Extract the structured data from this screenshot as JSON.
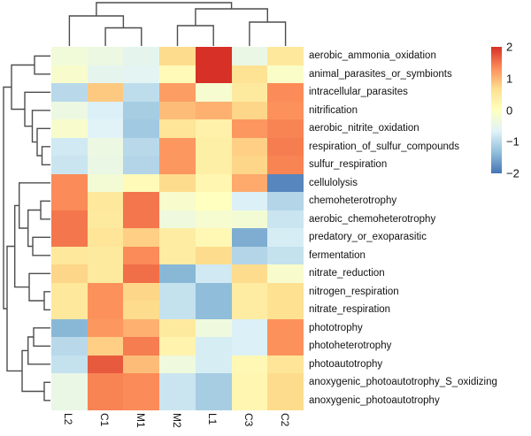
{
  "chart_data": {
    "type": "heatmap",
    "title": "",
    "columns": [
      "L2",
      "C1",
      "M1",
      "M2",
      "L1",
      "C3",
      "C2"
    ],
    "rows": [
      "aerobic_ammonia_oxidation",
      "animal_parasites_or_symbionts",
      "intracellular_parasites",
      "nitrification",
      "aerobic_nitrite_oxidation",
      "respiration_of_sulfur_compounds",
      "sulfur_respiration",
      "cellulolysis",
      "chemoheterotrophy",
      "aerobic_chemoheterotrophy",
      "predatory_or_exoparasitic",
      "fermentation",
      "nitrate_reduction",
      "nitrogen_respiration",
      "nitrate_respiration",
      "phototrophy",
      "photoheterotrophy",
      "photoautotrophy",
      "anoxygenic_photoautotrophy_S_oxidizing",
      "anoxygenic_photoautotrophy"
    ],
    "values": [
      [
        -0.3,
        -0.4,
        -0.55,
        0.7,
        2.0,
        -0.45,
        0.5
      ],
      [
        -0.15,
        -0.55,
        -0.6,
        0.1,
        2.0,
        0.6,
        -0.1
      ],
      [
        -1.0,
        0.85,
        -0.95,
        1.2,
        -0.2,
        0.45,
        1.35
      ],
      [
        -0.4,
        -0.7,
        -1.15,
        0.95,
        1.05,
        0.75,
        1.3
      ],
      [
        -0.15,
        -0.65,
        -1.2,
        0.55,
        0.3,
        1.25,
        1.4
      ],
      [
        -0.8,
        -0.4,
        -1.0,
        1.25,
        0.35,
        0.8,
        1.45
      ],
      [
        -0.85,
        -0.45,
        -1.05,
        1.25,
        0.35,
        0.75,
        1.4
      ],
      [
        1.35,
        -0.25,
        0.1,
        0.7,
        0.2,
        1.1,
        -1.85
      ],
      [
        1.35,
        0.5,
        1.5,
        -0.15,
        0.0,
        -0.7,
        -1.05
      ],
      [
        1.5,
        0.45,
        1.5,
        -0.35,
        -0.2,
        -0.25,
        -0.85
      ],
      [
        1.5,
        0.55,
        0.8,
        0.4,
        0.15,
        -1.5,
        -0.75
      ],
      [
        0.5,
        0.45,
        1.35,
        0.4,
        0.7,
        -1.05,
        -0.9
      ],
      [
        0.75,
        0.45,
        1.55,
        -1.4,
        -0.8,
        0.7,
        -0.15
      ],
      [
        0.5,
        1.3,
        0.75,
        -0.9,
        -1.35,
        0.4,
        0.65
      ],
      [
        0.5,
        1.3,
        0.7,
        -0.9,
        -1.35,
        0.4,
        0.65
      ],
      [
        -1.4,
        1.25,
        1.05,
        0.45,
        -0.35,
        -0.7,
        1.3
      ],
      [
        -1.0,
        0.8,
        1.45,
        0.25,
        -0.75,
        -0.7,
        1.3
      ],
      [
        -0.9,
        1.7,
        0.95,
        -0.35,
        -0.75,
        0.15,
        0.55
      ],
      [
        -0.45,
        1.4,
        1.35,
        -0.85,
        -1.15,
        0.2,
        0.7
      ],
      [
        -0.45,
        1.4,
        1.35,
        -0.85,
        -1.15,
        0.2,
        0.7
      ]
    ],
    "zlim": [
      -2,
      2
    ],
    "legend_ticks": [
      "2",
      "1",
      "0",
      "−1",
      "−2"
    ],
    "legend_tick_values": [
      2,
      1,
      0,
      -1,
      -2
    ],
    "legend_position": "right",
    "grid": false,
    "colormap": {
      "name": "RdYlBu_reversed",
      "anchors_low_to_high": [
        "#4575B4",
        "#91BFDB",
        "#E0F3F8",
        "#FFFFBF",
        "#FEE090",
        "#FC8D59",
        "#D73027"
      ]
    },
    "col_dendrogram": {
      "h": 1.0,
      "c": [
        {
          "h": 0.6875,
          "c": [
            0,
            {
              "h": 0.406,
              "c": [
                1,
                2
              ]
            }
          ]
        },
        {
          "h": 0.854,
          "c": [
            {
              "h": 0.458,
              "c": [
                3,
                4
              ]
            },
            {
              "h": 0.542,
              "c": [
                5,
                6
              ]
            }
          ]
        }
      ]
    },
    "row_dendrogram": {
      "h": 1.0,
      "c": [
        {
          "h": 0.827,
          "c": [
            {
              "h": 0.327,
              "c": [
                0,
                1
              ]
            },
            {
              "h": 0.538,
              "c": [
                2,
                {
                  "h": 0.375,
                  "c": [
                    3,
                    {
                      "h": 0.269,
                      "c": [
                        4,
                        {
                          "h": 0.163,
                          "c": [
                            5,
                            6
                          ]
                        }
                      ]
                    }
                  ]
                }
              ]
            }
          ]
        },
        {
          "h": 0.923,
          "c": [
            {
              "h": 0.756,
              "c": [
                {
                  "h": 0.66,
                  "c": [
                    7,
                    {
                      "h": 0.467,
                      "c": [
                        {
                          "h": 0.192,
                          "c": [
                            8,
                            9
                          ]
                        },
                        {
                          "h": 0.365,
                          "c": [
                            10,
                            11
                          ]
                        }
                      ]
                    }
                  ]
                },
                {
                  "h": 0.442,
                  "c": [
                    12,
                    {
                      "h": 0.115,
                      "c": [
                        13,
                        14
                      ]
                    }
                  ]
                }
              ]
            },
            {
              "h": 0.596,
              "c": [
                {
                  "h": 0.467,
                  "c": [
                    {
                      "h": 0.346,
                      "c": [
                        15,
                        16
                      ]
                    },
                    17
                  ]
                },
                {
                  "h": 0.115,
                  "c": [
                    18,
                    19
                  ]
                }
              ]
            }
          ]
        }
      ]
    }
  }
}
